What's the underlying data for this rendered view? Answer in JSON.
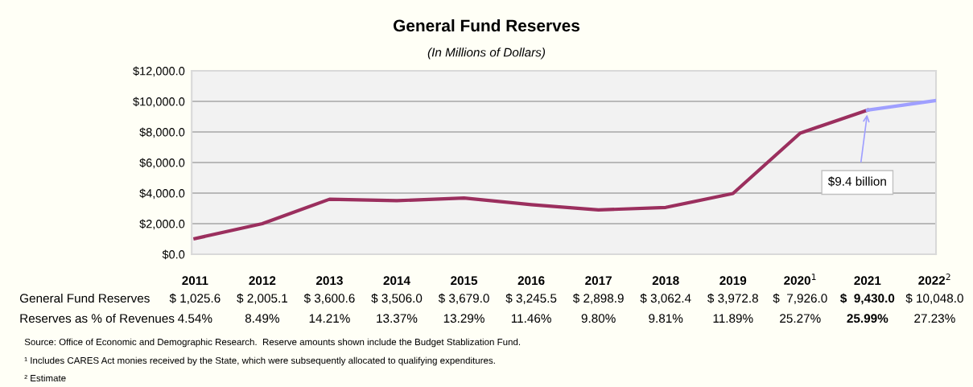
{
  "chart_data": {
    "type": "line",
    "title": "General Fund Reserves",
    "subtitle": "(In Millions of Dollars)",
    "categories": [
      "2011",
      "2012",
      "2013",
      "2014",
      "2015",
      "2016",
      "2017",
      "2018",
      "2019",
      "2020$^{1}$",
      "2021",
      "2022$^{2}$"
    ],
    "series": [
      {
        "name": "General Fund Reserves",
        "color": "#9b2f5e",
        "values": [
          1025.6,
          2005.1,
          3600.6,
          3506.0,
          3679.0,
          3245.5,
          2898.9,
          3062.4,
          3972.8,
          7926.0,
          9430.0,
          null
        ],
        "value_labels": [
          "$ 1,025.6",
          "$ 2,005.1",
          "$ 3,600.6",
          "$ 3,506.0",
          "$ 3,679.0",
          "$ 3,245.5",
          "$ 2,898.9",
          "$ 3,062.4",
          "$ 3,972.8",
          "$  7,926.0",
          "$  9,430.0",
          null
        ]
      },
      {
        "color": "#9f9fff",
        "values": [
          null,
          null,
          null,
          null,
          null,
          null,
          null,
          null,
          null,
          null,
          9430.0,
          10048.0
        ]
      }
    ],
    "ylim": [
      0,
      12000
    ],
    "yticks": [
      {
        "value": 0,
        "label": "$0.0"
      },
      {
        "value": 2000,
        "label": "$2,000.0"
      },
      {
        "value": 4000,
        "label": "$4,000.0"
      },
      {
        "value": 6000,
        "label": "$6,000.0"
      },
      {
        "value": 8000,
        "label": "$8,000.0"
      },
      {
        "value": 10000,
        "label": "$10,000.0"
      },
      {
        "value": 12000,
        "label": "$12,000.0"
      }
    ],
    "grid": "y",
    "marker": "none",
    "line_style": "solid",
    "annotations": [
      "Reserves as % of Revenues",
      "4.54%",
      "8.49%",
      "14.21%",
      "13.37%",
      "13.29%",
      "11.46%",
      "9.80%",
      "9.81%",
      "11.89%",
      "25.27%",
      "25.99%",
      "27.23%",
      "$9.4 billion",
      "$ 10,048.0",
      "Source: Office of Economic and Demographic Research.  Reserve amounts shown include the Budget Stablization Fund.",
      "¹ Includes CARES Act monies received by the State, which were subsequently allocated to qualifying expenditures.",
      "² Estimate"
    ]
  }
}
